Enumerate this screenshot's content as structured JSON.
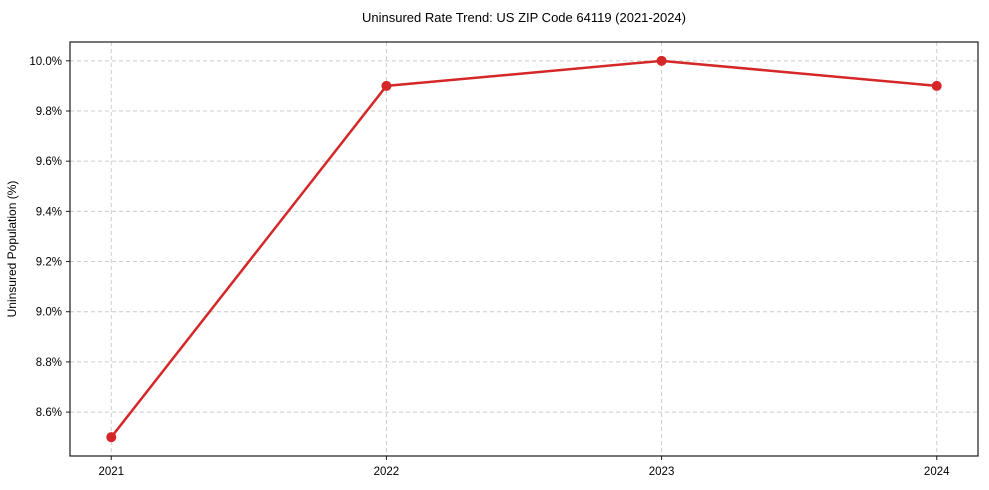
{
  "chart_data": {
    "type": "line",
    "title": "Uninsured Rate Trend: US ZIP Code 64119 (2021-2024)",
    "xlabel": "",
    "ylabel": "Uninsured Population (%)",
    "categories": [
      "2021",
      "2022",
      "2023",
      "2024"
    ],
    "series": [
      {
        "name": "Uninsured Population (%)",
        "values": [
          8.5,
          9.9,
          10.0,
          9.9
        ],
        "color": "#d62728",
        "marker": "circle",
        "line_width": 2.5,
        "marker_radius": 5
      }
    ],
    "ylim": [
      8.425,
      10.075
    ],
    "x_margin": 0.15,
    "yticks": {
      "values": [
        8.6,
        8.8,
        9.0,
        9.2,
        9.4,
        9.6,
        9.8,
        10.0
      ],
      "labels": [
        "8.6%",
        "8.8%",
        "9.0%",
        "9.2%",
        "9.4%",
        "9.6%",
        "9.8%",
        "10.0%"
      ]
    },
    "grid": {
      "visible": true,
      "style": "dashed",
      "color": "#cccccc",
      "dash": "4 3"
    },
    "legend": {
      "visible": false
    },
    "background": "#ffffff",
    "text_color": "#000000",
    "spine_color": "#1a1a1a"
  }
}
